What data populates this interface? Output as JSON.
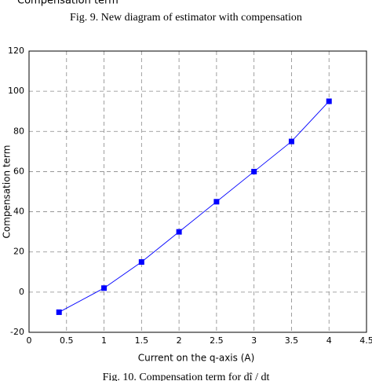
{
  "top_text": "Compensation term",
  "fig9_caption": "Fig. 9.  New diagram of estimator with compensation",
  "fig10_caption": "Fig. 10.  Compensation term for dî / dt",
  "chart_data": {
    "type": "line",
    "x": [
      0.4,
      1,
      1.5,
      2,
      2.5,
      3,
      3.5,
      4
    ],
    "series": [
      {
        "name": "Compensation term",
        "color": "#0000ff",
        "values": [
          -10,
          2,
          15,
          30,
          45,
          60,
          75,
          95
        ]
      }
    ],
    "xlabel": "Current on the q-axis (A)",
    "ylabel": "Compensation term",
    "xlim": [
      0,
      4.5
    ],
    "xticks": [
      0,
      0.5,
      1,
      1.5,
      2,
      2.5,
      3,
      3.5,
      4,
      4.5
    ],
    "ylim": [
      -20,
      120
    ],
    "yticks": [
      -20,
      0,
      20,
      40,
      60,
      80,
      100,
      120
    ],
    "grid": true
  }
}
